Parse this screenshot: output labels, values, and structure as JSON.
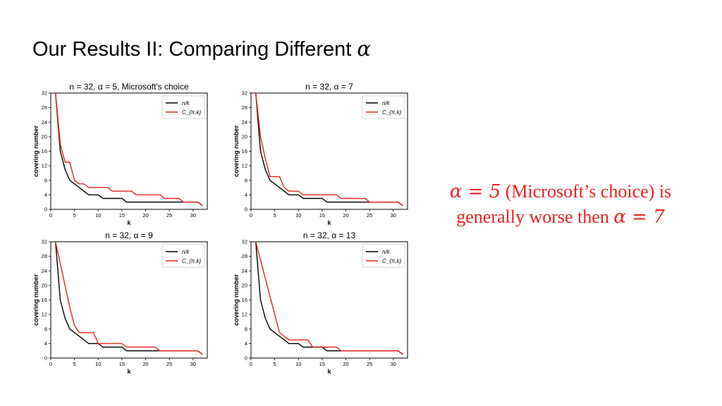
{
  "slide": {
    "title_text": "Our Results II: Comparing Different ",
    "title_symbol": "α"
  },
  "note": {
    "line1_math": "α = 5",
    "line1_text": " (Microsoft’s choice) is",
    "line2_text": "generally worse then ",
    "line2_math": "α = 7"
  },
  "colors": {
    "nk": "#000000",
    "cpk": "#e8231f",
    "note": "#e8231f"
  },
  "chart_data": [
    {
      "type": "line",
      "title": "n = 32, α = 5, Microsoft's choice",
      "xlabel": "k",
      "ylabel": "covering number",
      "xlim": [
        0,
        33
      ],
      "ylim": [
        0,
        32
      ],
      "xticks": [
        0,
        5,
        10,
        15,
        20,
        25,
        30
      ],
      "yticks": [
        0,
        4,
        8,
        12,
        16,
        20,
        24,
        28,
        32
      ],
      "legend": "top-right",
      "series": [
        {
          "name": "n/k",
          "x": [
            1,
            2,
            3,
            4,
            5,
            6,
            7,
            8,
            9,
            10,
            11,
            12,
            13,
            14,
            15,
            16,
            17,
            18,
            19,
            20,
            21,
            22,
            23,
            24,
            25,
            26,
            27,
            28,
            29,
            30,
            31,
            32
          ],
          "y": [
            32,
            16,
            11,
            8,
            7,
            6,
            5,
            4,
            4,
            4,
            3,
            3,
            3,
            3,
            3,
            2,
            2,
            2,
            2,
            2,
            2,
            2,
            2,
            2,
            2,
            2,
            2,
            2,
            2,
            2,
            2,
            1
          ]
        },
        {
          "name": "C_{π,k}",
          "x": [
            1,
            2,
            3,
            4,
            5,
            6,
            7,
            8,
            9,
            10,
            11,
            12,
            13,
            14,
            15,
            16,
            17,
            18,
            19,
            20,
            21,
            22,
            23,
            24,
            25,
            26,
            27,
            28,
            29,
            30,
            31,
            32
          ],
          "y": [
            32,
            18,
            13,
            13,
            8,
            7,
            7,
            6,
            6,
            6,
            6,
            6,
            5,
            5,
            5,
            5,
            5,
            4,
            4,
            4,
            4,
            4,
            4,
            3,
            3,
            3,
            3,
            2,
            2,
            2,
            2,
            1
          ]
        }
      ]
    },
    {
      "type": "line",
      "title": "n = 32, α = 7",
      "xlabel": "k",
      "ylabel": "covering number",
      "xlim": [
        0,
        33
      ],
      "ylim": [
        0,
        32
      ],
      "xticks": [
        0,
        5,
        10,
        15,
        20,
        25,
        30
      ],
      "yticks": [
        0,
        4,
        8,
        12,
        16,
        20,
        24,
        28,
        32
      ],
      "legend": "top-right",
      "series": [
        {
          "name": "n/k",
          "x": [
            1,
            2,
            3,
            4,
            5,
            6,
            7,
            8,
            9,
            10,
            11,
            12,
            13,
            14,
            15,
            16,
            17,
            18,
            19,
            20,
            21,
            22,
            23,
            24,
            25,
            26,
            27,
            28,
            29,
            30,
            31,
            32
          ],
          "y": [
            32,
            16,
            11,
            8,
            7,
            6,
            5,
            4,
            4,
            4,
            3,
            3,
            3,
            3,
            3,
            2,
            2,
            2,
            2,
            2,
            2,
            2,
            2,
            2,
            2,
            2,
            2,
            2,
            2,
            2,
            2,
            1
          ]
        },
        {
          "name": "C_{π,k}",
          "x": [
            1,
            2,
            3,
            4,
            5,
            6,
            7,
            8,
            9,
            10,
            11,
            12,
            13,
            14,
            15,
            16,
            17,
            18,
            19,
            20,
            21,
            22,
            23,
            24,
            25,
            26,
            27,
            28,
            29,
            30,
            31,
            32
          ],
          "y": [
            32,
            20,
            14,
            9,
            9,
            9,
            6,
            5,
            5,
            5,
            4,
            4,
            4,
            4,
            4,
            4,
            4,
            4,
            3,
            3,
            3,
            3,
            3,
            3,
            2,
            2,
            2,
            2,
            2,
            2,
            2,
            1
          ]
        }
      ]
    },
    {
      "type": "line",
      "title": "n = 32, α = 9",
      "xlabel": "k",
      "ylabel": "covering number",
      "xlim": [
        0,
        33
      ],
      "ylim": [
        0,
        32
      ],
      "xticks": [
        0,
        5,
        10,
        15,
        20,
        25,
        30
      ],
      "yticks": [
        0,
        4,
        8,
        12,
        16,
        20,
        24,
        28,
        32
      ],
      "legend": "top-right",
      "series": [
        {
          "name": "n/k",
          "x": [
            1,
            2,
            3,
            4,
            5,
            6,
            7,
            8,
            9,
            10,
            11,
            12,
            13,
            14,
            15,
            16,
            17,
            18,
            19,
            20,
            21,
            22,
            23,
            24,
            25,
            26,
            27,
            28,
            29,
            30,
            31,
            32
          ],
          "y": [
            32,
            16,
            11,
            8,
            7,
            6,
            5,
            4,
            4,
            4,
            3,
            3,
            3,
            3,
            3,
            2,
            2,
            2,
            2,
            2,
            2,
            2,
            2,
            2,
            2,
            2,
            2,
            2,
            2,
            2,
            2,
            1
          ]
        },
        {
          "name": "C_{π,k}",
          "x": [
            1,
            2,
            3,
            4,
            5,
            6,
            7,
            8,
            9,
            10,
            11,
            12,
            13,
            14,
            15,
            16,
            17,
            18,
            19,
            20,
            21,
            22,
            23,
            24,
            25,
            26,
            27,
            28,
            29,
            30,
            31,
            32
          ],
          "y": [
            32,
            26,
            20,
            14,
            9,
            7,
            7,
            7,
            7,
            4,
            4,
            4,
            4,
            4,
            4,
            3,
            3,
            3,
            3,
            3,
            3,
            3,
            2,
            2,
            2,
            2,
            2,
            2,
            2,
            2,
            2,
            1
          ]
        }
      ]
    },
    {
      "type": "line",
      "title": "n = 32, α = 13",
      "xlabel": "k",
      "ylabel": "covering number",
      "xlim": [
        0,
        33
      ],
      "ylim": [
        0,
        32
      ],
      "xticks": [
        0,
        5,
        10,
        15,
        20,
        25,
        30
      ],
      "yticks": [
        0,
        4,
        8,
        12,
        16,
        20,
        24,
        28,
        32
      ],
      "legend": "top-right",
      "series": [
        {
          "name": "n/k",
          "x": [
            1,
            2,
            3,
            4,
            5,
            6,
            7,
            8,
            9,
            10,
            11,
            12,
            13,
            14,
            15,
            16,
            17,
            18,
            19,
            20,
            21,
            22,
            23,
            24,
            25,
            26,
            27,
            28,
            29,
            30,
            31,
            32
          ],
          "y": [
            32,
            16,
            11,
            8,
            7,
            6,
            5,
            4,
            4,
            4,
            3,
            3,
            3,
            3,
            3,
            2,
            2,
            2,
            2,
            2,
            2,
            2,
            2,
            2,
            2,
            2,
            2,
            2,
            2,
            2,
            2,
            1
          ]
        },
        {
          "name": "C_{π,k}",
          "x": [
            1,
            2,
            3,
            4,
            5,
            6,
            7,
            8,
            9,
            10,
            11,
            12,
            13,
            14,
            15,
            16,
            17,
            18,
            19,
            20,
            21,
            22,
            23,
            24,
            25,
            26,
            27,
            28,
            29,
            30,
            31,
            32
          ],
          "y": [
            32,
            27,
            22,
            17,
            12,
            7,
            6,
            5,
            5,
            5,
            5,
            5,
            3,
            3,
            3,
            3,
            3,
            3,
            2,
            2,
            2,
            2,
            2,
            2,
            2,
            2,
            2,
            2,
            2,
            2,
            2,
            1
          ]
        }
      ]
    }
  ]
}
